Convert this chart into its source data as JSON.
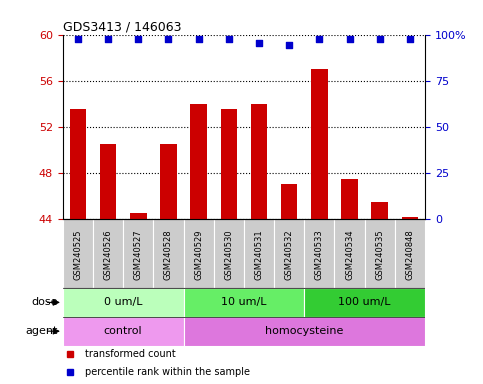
{
  "title": "GDS3413 / 146063",
  "samples": [
    "GSM240525",
    "GSM240526",
    "GSM240527",
    "GSM240528",
    "GSM240529",
    "GSM240530",
    "GSM240531",
    "GSM240532",
    "GSM240533",
    "GSM240534",
    "GSM240535",
    "GSM240848"
  ],
  "bar_values": [
    53.5,
    50.5,
    44.5,
    50.5,
    54.0,
    53.5,
    54.0,
    47.0,
    57.0,
    47.5,
    45.5,
    44.2
  ],
  "percentile_values": [
    59.6,
    59.6,
    59.6,
    59.6,
    59.6,
    59.6,
    59.3,
    59.1,
    59.6,
    59.6,
    59.6,
    59.6
  ],
  "ylim_low": 44,
  "ylim_high": 60,
  "yticks": [
    44,
    48,
    52,
    56,
    60
  ],
  "bar_color": "#cc0000",
  "dot_color": "#0000cc",
  "bar_width": 0.55,
  "dose_groups": [
    {
      "label": "0 um/L",
      "start": 0,
      "end": 4,
      "color": "#bbffbb"
    },
    {
      "label": "10 um/L",
      "start": 4,
      "end": 8,
      "color": "#66ee66"
    },
    {
      "label": "100 um/L",
      "start": 8,
      "end": 12,
      "color": "#33cc33"
    }
  ],
  "agent_groups": [
    {
      "label": "control",
      "start": 0,
      "end": 4,
      "color": "#ee99ee"
    },
    {
      "label": "homocysteine",
      "start": 4,
      "end": 12,
      "color": "#dd77dd"
    }
  ],
  "legend_items": [
    {
      "label": "transformed count",
      "color": "#cc0000"
    },
    {
      "label": "percentile rank within the sample",
      "color": "#0000cc"
    }
  ],
  "dose_label": "dose",
  "agent_label": "agent",
  "sample_box_color": "#cccccc",
  "right_yticks": [
    0,
    25,
    50,
    75,
    100
  ],
  "right_yticklabels": [
    "0",
    "25",
    "50",
    "75",
    "100%"
  ]
}
